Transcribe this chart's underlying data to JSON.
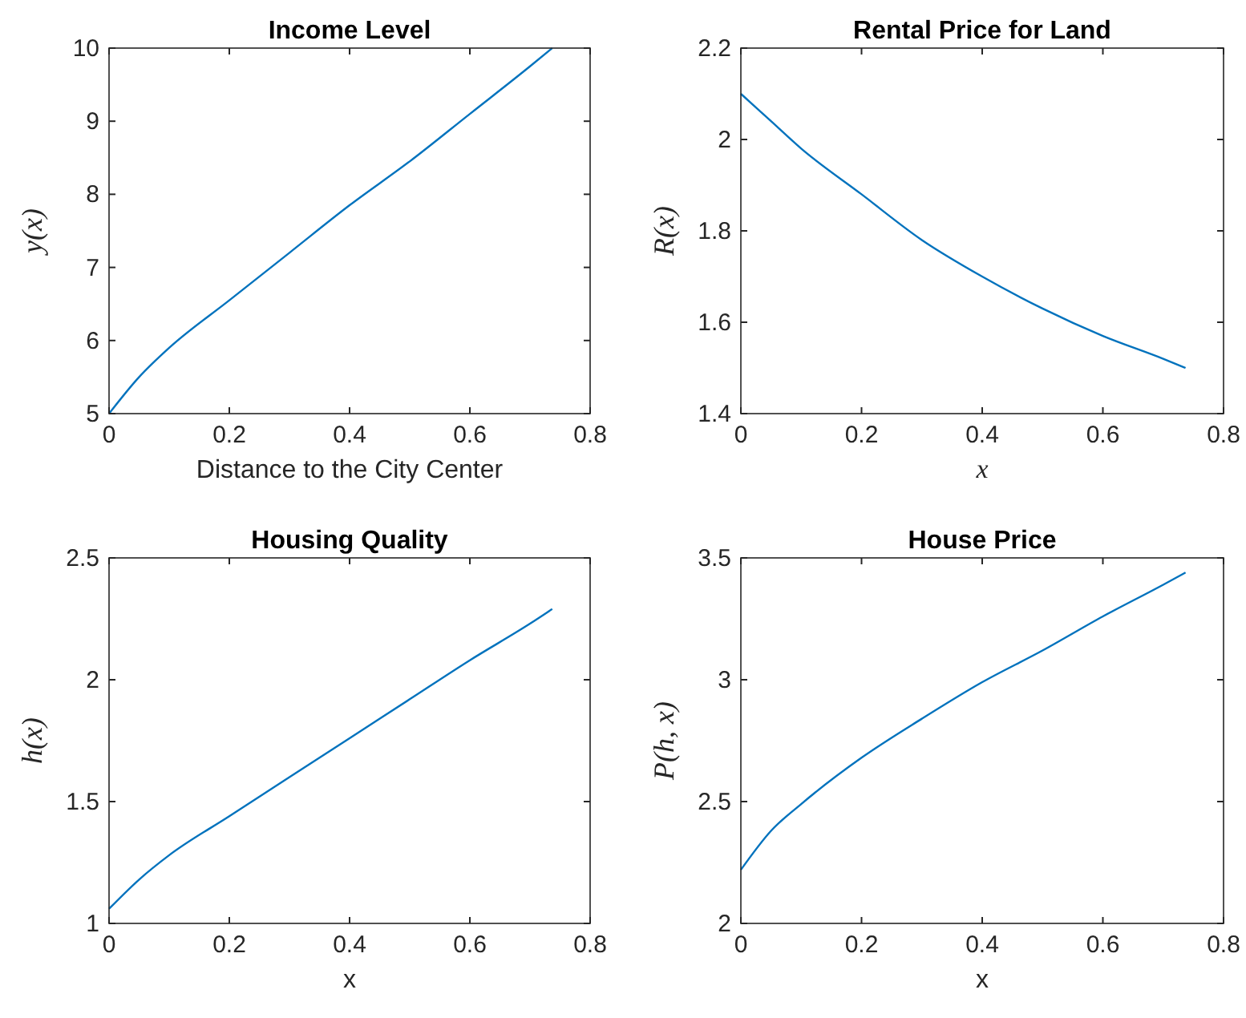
{
  "chart_data": [
    {
      "type": "line",
      "title": "Income Level",
      "xlabel": "Distance to the City Center",
      "ylabel": "y(x)",
      "x": [
        0,
        0.05,
        0.1,
        0.2,
        0.3,
        0.4,
        0.5,
        0.6,
        0.7,
        0.737
      ],
      "series": [
        {
          "color": "#0072bd",
          "values": [
            5.0,
            5.5,
            5.9,
            6.55,
            7.2,
            7.85,
            8.45,
            9.1,
            9.75,
            10.0
          ]
        }
      ],
      "xlim": [
        0,
        0.8
      ],
      "xticks": [
        0,
        0.2,
        0.4,
        0.6,
        0.8
      ],
      "ylim": [
        5,
        10
      ],
      "yticks": [
        5,
        6,
        7,
        8,
        9,
        10
      ],
      "grid": false
    },
    {
      "type": "line",
      "title": "Rental Price for Land",
      "xlabel": "x",
      "ylabel": "R(x)",
      "x": [
        0,
        0.05,
        0.1,
        0.2,
        0.3,
        0.4,
        0.5,
        0.6,
        0.7,
        0.737
      ],
      "series": [
        {
          "color": "#0072bd",
          "values": [
            2.1,
            2.04,
            1.98,
            1.88,
            1.78,
            1.7,
            1.63,
            1.57,
            1.52,
            1.5
          ]
        }
      ],
      "xlim": [
        0,
        0.8
      ],
      "xticks": [
        0,
        0.2,
        0.4,
        0.6,
        0.8
      ],
      "ylim": [
        1.4,
        2.2
      ],
      "yticks": [
        1.4,
        1.6,
        1.8,
        2,
        2.2
      ],
      "grid": false
    },
    {
      "type": "line",
      "title": "Housing Quality",
      "xlabel": "x",
      "ylabel": "h(x)",
      "x": [
        0,
        0.05,
        0.1,
        0.2,
        0.3,
        0.4,
        0.5,
        0.6,
        0.7,
        0.737
      ],
      "series": [
        {
          "color": "#0072bd",
          "values": [
            1.06,
            1.18,
            1.28,
            1.44,
            1.6,
            1.76,
            1.92,
            2.08,
            2.23,
            2.29
          ]
        }
      ],
      "xlim": [
        0,
        0.8
      ],
      "xticks": [
        0,
        0.2,
        0.4,
        0.6,
        0.8
      ],
      "ylim": [
        1,
        2.5
      ],
      "yticks": [
        1,
        1.5,
        2,
        2.5
      ],
      "grid": false
    },
    {
      "type": "line",
      "title": "House Price",
      "xlabel": "x",
      "ylabel": "P(h, x)",
      "x": [
        0,
        0.05,
        0.1,
        0.2,
        0.3,
        0.4,
        0.5,
        0.6,
        0.7,
        0.737
      ],
      "series": [
        {
          "color": "#0072bd",
          "values": [
            2.22,
            2.38,
            2.49,
            2.68,
            2.84,
            2.99,
            3.12,
            3.26,
            3.39,
            3.44
          ]
        }
      ],
      "xlim": [
        0,
        0.8
      ],
      "xticks": [
        0,
        0.2,
        0.4,
        0.6,
        0.8
      ],
      "ylim": [
        2,
        3.5
      ],
      "yticks": [
        2,
        2.5,
        3,
        3.5
      ],
      "grid": false
    }
  ]
}
